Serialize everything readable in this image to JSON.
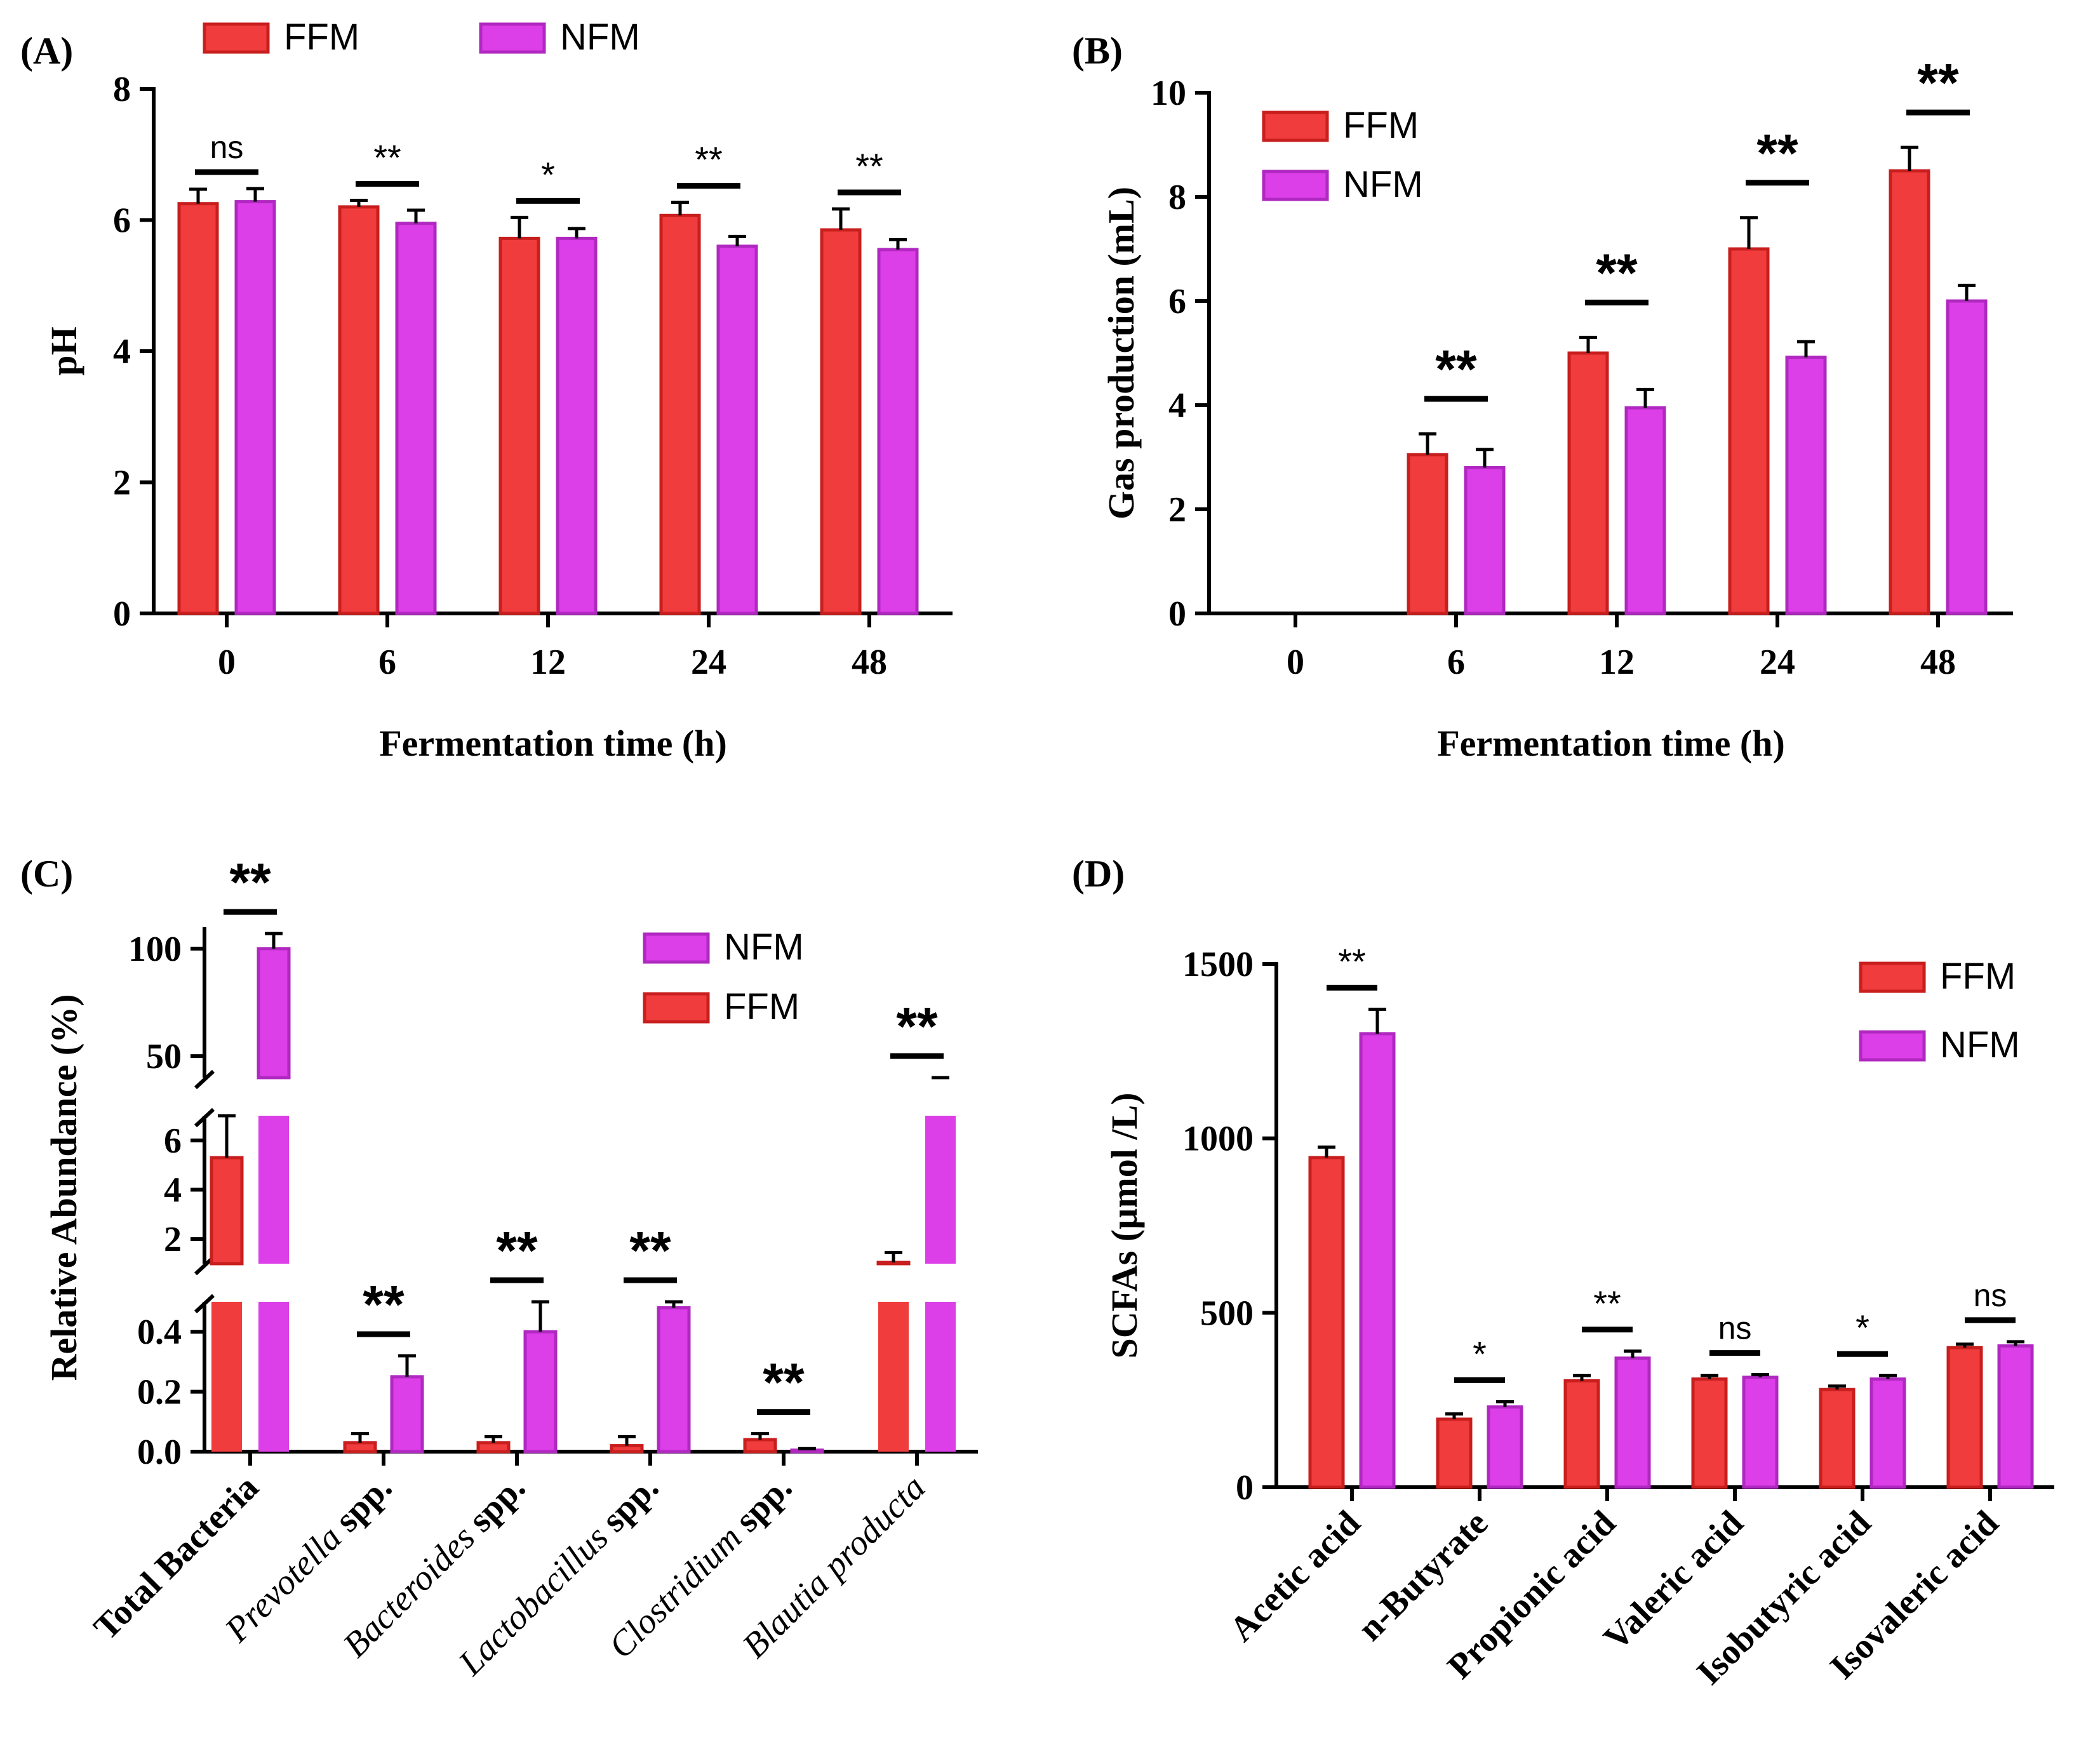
{
  "colors": {
    "FFM": "#f03c3c",
    "NFM": "#dc3ee8",
    "FFM_edge": "#c81e1e",
    "NFM_edge": "#b028c0"
  },
  "chart_data": [
    {
      "panel": "(A)",
      "type": "bar",
      "xlabel": "Fermentation time (h)",
      "ylabel": "pH",
      "ylim": [
        0,
        8
      ],
      "yticks": [
        "0",
        "2",
        "4",
        "6",
        "8"
      ],
      "categories": [
        "0",
        "6",
        "12",
        "24",
        "48"
      ],
      "legend": [
        "FFM",
        "NFM"
      ],
      "series": [
        {
          "name": "FFM",
          "values": [
            6.25,
            6.2,
            5.72,
            6.07,
            5.85
          ],
          "errors": [
            0.22,
            0.1,
            0.32,
            0.2,
            0.32
          ]
        },
        {
          "name": "NFM",
          "values": [
            6.28,
            5.95,
            5.72,
            5.6,
            5.55
          ],
          "errors": [
            0.2,
            0.2,
            0.15,
            0.15,
            0.15
          ]
        }
      ],
      "significance": [
        "ns",
        "**",
        "*",
        "**",
        "**"
      ]
    },
    {
      "panel": "(B)",
      "type": "bar",
      "xlabel": "Fermentation time (h)",
      "ylabel": "Gas production (mL)",
      "ylim": [
        0,
        10
      ],
      "yticks": [
        "0",
        "2",
        "4",
        "6",
        "8",
        "10"
      ],
      "categories": [
        "0",
        "6",
        "12",
        "24",
        "48"
      ],
      "legend": [
        "FFM",
        "NFM"
      ],
      "series": [
        {
          "name": "FFM",
          "values": [
            0,
            3.05,
            5.0,
            7.0,
            8.5
          ],
          "errors": [
            0,
            0.4,
            0.3,
            0.6,
            0.45
          ]
        },
        {
          "name": "NFM",
          "values": [
            0,
            2.8,
            3.95,
            4.92,
            6.0
          ],
          "errors": [
            0,
            0.35,
            0.35,
            0.3,
            0.3
          ]
        }
      ],
      "significance": [
        "",
        "**",
        "**",
        "**",
        "**"
      ]
    },
    {
      "panel": "(C)",
      "type": "bar",
      "xlabel": "",
      "ylabel": "Relative Abundance (%)",
      "axis_breaks": "broken y-axis: 0–0.5, 1–7, 40–100",
      "yticks_bottom": [
        "0.0",
        "0.2",
        "0.4"
      ],
      "yticks_middle": [
        "2",
        "4",
        "6"
      ],
      "yticks_top": [
        "50",
        "100"
      ],
      "categories": [
        {
          "italic": "",
          "regular": "Total Bacteria"
        },
        {
          "italic": "Prevotella",
          "regular": " spp."
        },
        {
          "italic": "Bacteroides",
          "regular": " spp."
        },
        {
          "italic": "Lactobacillus",
          "regular": " spp."
        },
        {
          "italic": "Clostridium",
          "regular": " spp."
        },
        {
          "italic": "Blautia producta",
          "regular": ""
        }
      ],
      "legend": [
        "NFM",
        "FFM"
      ],
      "series": [
        {
          "name": "FFM",
          "values": [
            5.3,
            0.03,
            0.03,
            0.02,
            0.04,
            1.05
          ],
          "errors": [
            1.7,
            0.03,
            0.02,
            0.03,
            0.02,
            0.4
          ]
        },
        {
          "name": "NFM",
          "values": [
            100,
            0.25,
            0.4,
            0.48,
            0.005,
            30
          ],
          "errors": [
            7,
            0.07,
            0.1,
            0.02,
            0.005,
            3
          ]
        }
      ],
      "significance": [
        "**",
        "**",
        "**",
        "**",
        "**",
        "**"
      ]
    },
    {
      "panel": "(D)",
      "type": "bar",
      "xlabel": "",
      "ylabel": "SCFAs (µmol /L)",
      "ylim": [
        0,
        1500
      ],
      "yticks": [
        "0",
        "500",
        "1000",
        "1500"
      ],
      "categories": [
        "Acetic acid",
        "n-Butyrate",
        "Propionic acid",
        "Valeric acid",
        "Isobutyric acid",
        "Isovaleric acid"
      ],
      "legend": [
        "FFM",
        "NFM"
      ],
      "series": [
        {
          "name": "FFM",
          "values": [
            945,
            195,
            305,
            310,
            280,
            400
          ],
          "errors": [
            30,
            15,
            15,
            10,
            10,
            10
          ]
        },
        {
          "name": "NFM",
          "values": [
            1300,
            230,
            370,
            315,
            310,
            405
          ],
          "errors": [
            70,
            15,
            20,
            8,
            10,
            12
          ]
        }
      ],
      "significance": [
        "**",
        "*",
        "**",
        "ns",
        "*",
        "ns"
      ]
    }
  ]
}
